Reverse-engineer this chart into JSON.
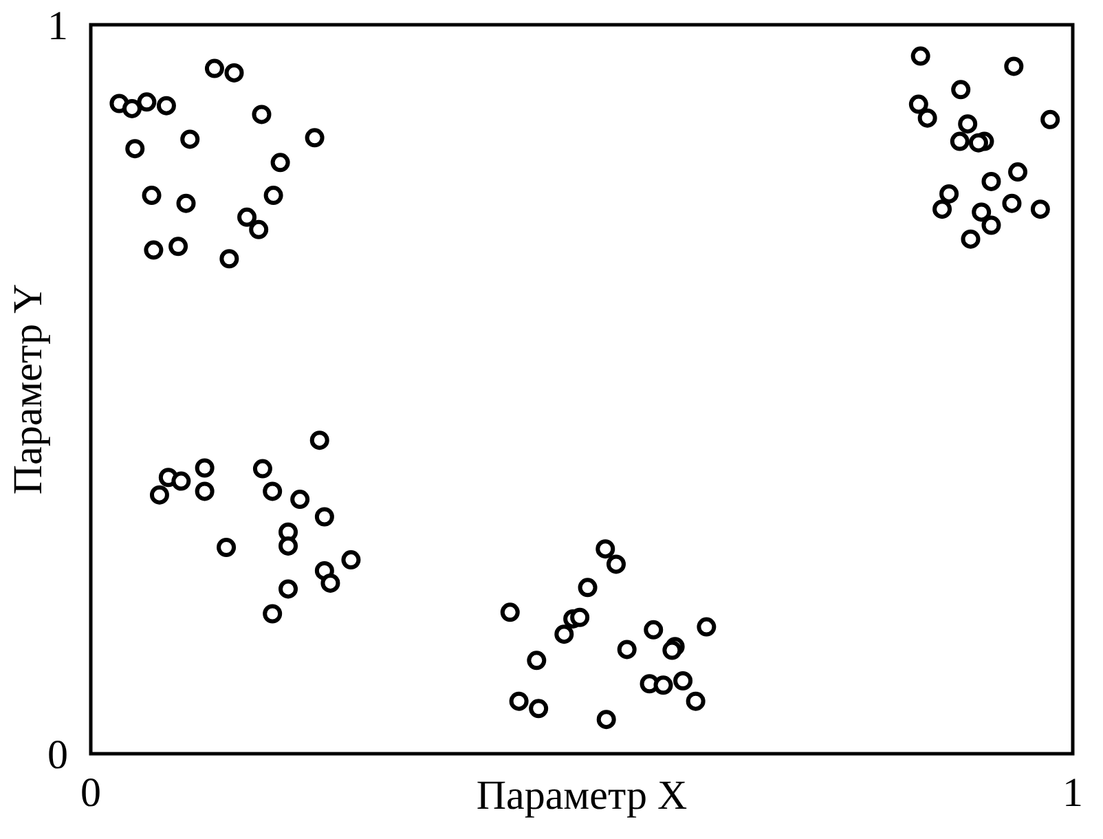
{
  "chart_data": {
    "type": "scatter",
    "xlabel": "Параметр X",
    "ylabel": "Параметр Y",
    "xlim": [
      0,
      1
    ],
    "ylim": [
      0,
      1
    ],
    "xticks": [
      0,
      1
    ],
    "yticks": [
      0,
      1
    ],
    "marker": "circle",
    "series": [
      {
        "color": "#000000",
        "x": [
          0.029,
          0.042,
          0.057,
          0.077,
          0.045,
          0.126,
          0.146,
          0.174,
          0.101,
          0.228,
          0.193,
          0.062,
          0.097,
          0.186,
          0.159,
          0.171,
          0.064,
          0.089,
          0.141,
          0.845,
          0.94,
          0.886,
          0.843,
          0.852,
          0.893,
          0.977,
          0.885,
          0.91,
          0.904,
          0.944,
          0.917,
          0.874,
          0.867,
          0.907,
          0.938,
          0.967,
          0.917,
          0.896,
          0.233,
          0.116,
          0.175,
          0.079,
          0.092,
          0.07,
          0.116,
          0.185,
          0.213,
          0.238,
          0.201,
          0.201,
          0.138,
          0.265,
          0.238,
          0.244,
          0.201,
          0.185,
          0.524,
          0.535,
          0.506,
          0.427,
          0.491,
          0.498,
          0.482,
          0.454,
          0.546,
          0.573,
          0.595,
          0.592,
          0.627,
          0.569,
          0.583,
          0.603,
          0.616,
          0.436,
          0.456,
          0.525
        ],
        "values": [
          0.892,
          0.885,
          0.894,
          0.889,
          0.83,
          0.94,
          0.934,
          0.877,
          0.843,
          0.845,
          0.811,
          0.766,
          0.755,
          0.766,
          0.736,
          0.719,
          0.691,
          0.696,
          0.679,
          0.957,
          0.943,
          0.911,
          0.891,
          0.872,
          0.864,
          0.87,
          0.84,
          0.84,
          0.838,
          0.798,
          0.785,
          0.768,
          0.747,
          0.743,
          0.755,
          0.747,
          0.725,
          0.706,
          0.43,
          0.392,
          0.391,
          0.379,
          0.374,
          0.355,
          0.36,
          0.36,
          0.349,
          0.325,
          0.304,
          0.285,
          0.283,
          0.266,
          0.251,
          0.234,
          0.226,
          0.192,
          0.281,
          0.26,
          0.228,
          0.194,
          0.185,
          0.187,
          0.164,
          0.128,
          0.143,
          0.17,
          0.147,
          0.142,
          0.174,
          0.096,
          0.094,
          0.1,
          0.072,
          0.072,
          0.062,
          0.047
        ]
      }
    ]
  }
}
